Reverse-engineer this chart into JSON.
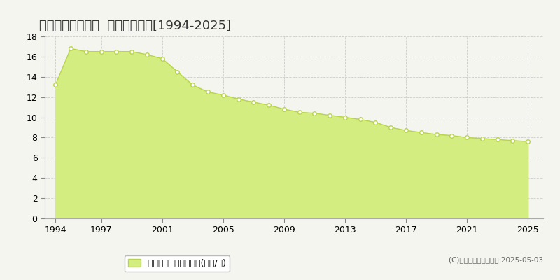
{
  "title": "甘楽郡甘楽町福島  公示地価推移[1994-2025]",
  "years": [
    1994,
    1995,
    1996,
    1997,
    1998,
    1999,
    2000,
    2001,
    2002,
    2003,
    2004,
    2005,
    2006,
    2007,
    2008,
    2009,
    2010,
    2011,
    2012,
    2013,
    2014,
    2015,
    2016,
    2017,
    2018,
    2019,
    2020,
    2021,
    2022,
    2023,
    2024,
    2025
  ],
  "values": [
    13.2,
    16.8,
    16.5,
    16.5,
    16.5,
    16.5,
    16.2,
    15.8,
    14.5,
    13.2,
    12.5,
    12.2,
    11.8,
    11.5,
    11.2,
    10.8,
    10.5,
    10.4,
    10.2,
    10.0,
    9.8,
    9.5,
    9.0,
    8.7,
    8.5,
    8.3,
    8.2,
    8.0,
    7.9,
    7.8,
    7.7,
    7.6
  ],
  "line_color": "#b8d44a",
  "fill_color": "#d4ed80",
  "bg_color": "#f5f5f0",
  "plot_bg_color": "#f5f5f0",
  "grid_color": "#cccccc",
  "ylim": [
    0,
    18
  ],
  "yticks": [
    0,
    2,
    4,
    6,
    8,
    10,
    12,
    14,
    16,
    18
  ],
  "xticks": [
    1994,
    1997,
    2001,
    2005,
    2009,
    2013,
    2017,
    2021,
    2025
  ],
  "legend_label": "公示地価  平均坪単価(万円/坪)",
  "copyright_text": "(C)土地価格ドットコム 2025-05-03",
  "title_fontsize": 13,
  "tick_fontsize": 9,
  "legend_fontsize": 9,
  "xlim_left": 1993.3,
  "xlim_right": 2026.0
}
